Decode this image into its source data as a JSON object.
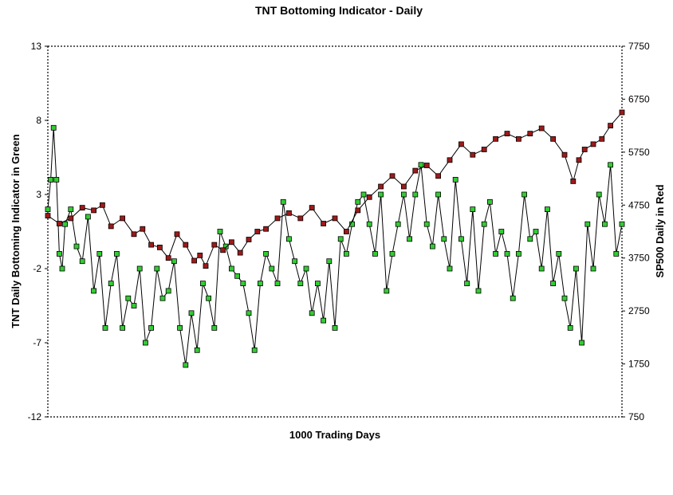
{
  "chart_data": {
    "type": "line",
    "title": "TNT Bottoming Indicator - Daily",
    "xlabel": "1000 Trading Days",
    "y_left_label": "TNT Daily Bottoming Indicator in Green",
    "y_right_label": "SP500 Daily in Red",
    "y_left_lim": [
      -12,
      13
    ],
    "y_right_lim": [
      750,
      7750
    ],
    "y_left_ticks": [
      "13",
      "8",
      "3",
      "-2",
      "-7",
      "-12"
    ],
    "y_right_ticks": [
      "7750",
      "6750",
      "5750",
      "4750",
      "3750",
      "2750",
      "1750",
      "750"
    ],
    "grid": false,
    "series": [
      {
        "axis": "right",
        "color": "#9e1a1a",
        "x": [
          0,
          20,
          40,
          60,
          80,
          95,
          110,
          130,
          150,
          165,
          180,
          195,
          210,
          225,
          240,
          255,
          265,
          275,
          290,
          305,
          320,
          335,
          350,
          365,
          380,
          400,
          420,
          440,
          460,
          480,
          500,
          520,
          540,
          560,
          580,
          600,
          620,
          640,
          660,
          680,
          700,
          720,
          740,
          760,
          780,
          800,
          820,
          840,
          860,
          880,
          900,
          915,
          925,
          935,
          950,
          965,
          980,
          1000
        ],
        "y": [
          4550,
          4400,
          4500,
          4700,
          4650,
          4750,
          4350,
          4500,
          4200,
          4300,
          4000,
          3950,
          3750,
          4200,
          4000,
          3700,
          3800,
          3600,
          4000,
          3900,
          4050,
          3850,
          4100,
          4250,
          4300,
          4500,
          4600,
          4500,
          4700,
          4400,
          4500,
          4250,
          4650,
          4900,
          5100,
          5300,
          5100,
          5400,
          5500,
          5300,
          5600,
          5900,
          5700,
          5800,
          6000,
          6100,
          6000,
          6100,
          6200,
          6000,
          5700,
          5200,
          5600,
          5800,
          5900,
          6000,
          6250,
          6500
        ]
      },
      {
        "axis": "left",
        "color": "#33cc33",
        "x": [
          0,
          5,
          10,
          15,
          20,
          25,
          30,
          40,
          50,
          60,
          70,
          80,
          90,
          100,
          110,
          120,
          130,
          140,
          150,
          160,
          170,
          180,
          190,
          200,
          210,
          220,
          230,
          240,
          250,
          260,
          270,
          280,
          290,
          300,
          310,
          320,
          330,
          340,
          350,
          360,
          370,
          380,
          390,
          400,
          410,
          420,
          430,
          440,
          450,
          460,
          470,
          480,
          490,
          500,
          510,
          520,
          530,
          540,
          550,
          560,
          570,
          580,
          590,
          600,
          610,
          620,
          630,
          640,
          650,
          660,
          670,
          680,
          690,
          700,
          710,
          720,
          730,
          740,
          750,
          760,
          770,
          780,
          790,
          800,
          810,
          820,
          830,
          840,
          850,
          860,
          870,
          880,
          890,
          900,
          910,
          920,
          930,
          940,
          950,
          960,
          970,
          980,
          990,
          1000
        ],
        "y": [
          2,
          4,
          7.5,
          4,
          -1,
          -2,
          1,
          2,
          -0.5,
          -1.5,
          1.5,
          -3.5,
          -1,
          -6,
          -3,
          -1,
          -6,
          -4,
          -4.5,
          -2,
          -7,
          -6,
          -2,
          -4,
          -3.5,
          -1.5,
          -6,
          -8.5,
          -5,
          -7.5,
          -3,
          -4,
          -6,
          0.5,
          -0.5,
          -2,
          -2.5,
          -3,
          -5,
          -7.5,
          -3,
          -1,
          -2,
          -3,
          2.5,
          0,
          -1.5,
          -3,
          -2,
          -5,
          -3,
          -5.5,
          -1.5,
          -6,
          0,
          -1,
          1,
          2.5,
          3,
          1,
          -1,
          3,
          -3.5,
          -1,
          1,
          3,
          0,
          3,
          5,
          1,
          -0.5,
          3,
          0,
          -2,
          4,
          0,
          -3,
          2,
          -3.5,
          1,
          2.5,
          -1,
          0.5,
          -1,
          -4,
          -1,
          3,
          0,
          0.5,
          -2,
          2,
          -3,
          -1,
          -4,
          -6,
          -2,
          -7,
          1,
          -2,
          3,
          1,
          5,
          -1,
          1
        ]
      }
    ]
  }
}
